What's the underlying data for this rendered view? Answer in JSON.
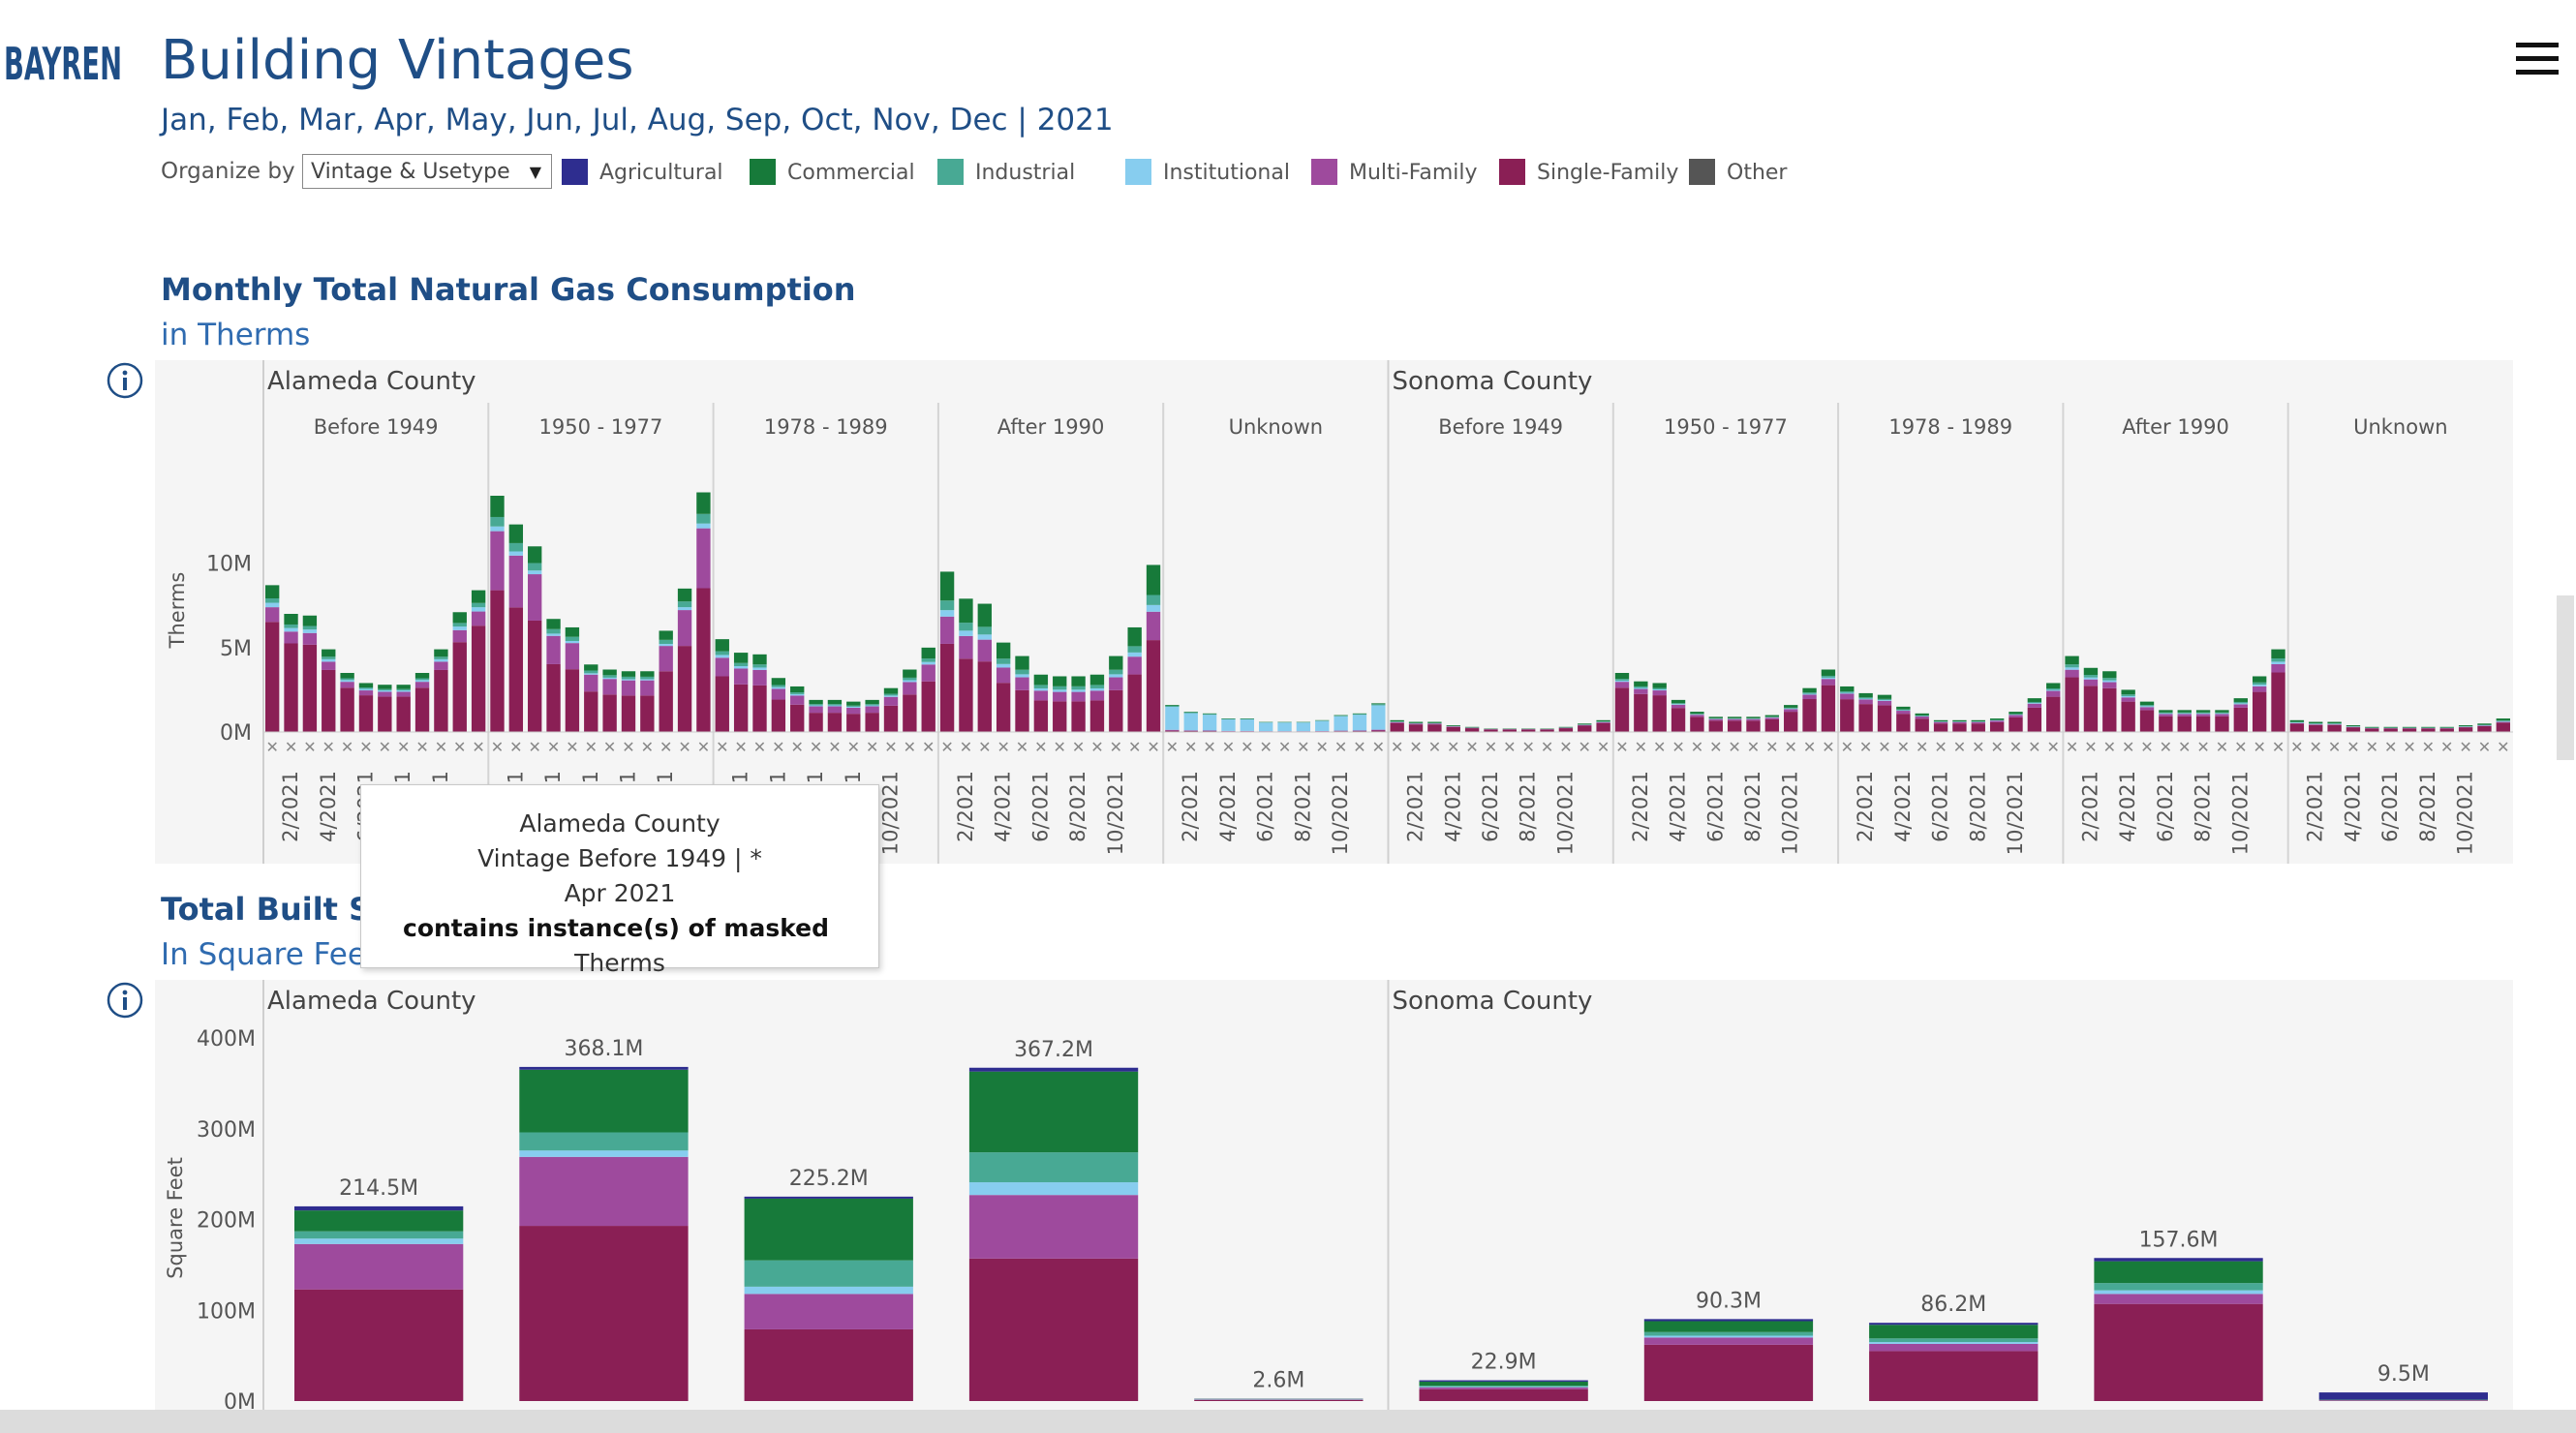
{
  "logo": {
    "text": "BAYREN"
  },
  "header": {
    "title": "Building Vintages",
    "subtitle": "Jan, Feb, Mar, Apr, May, Jun, Jul, Aug, Sep, Oct, Nov, Dec | 2021"
  },
  "controls": {
    "organize_label": "Organize by",
    "organize_value": "Vintage & Usetype"
  },
  "legend": [
    {
      "label": "Agricultural",
      "color": "#2e2d8f"
    },
    {
      "label": "Commercial",
      "color": "#177a3a"
    },
    {
      "label": "Industrial",
      "color": "#48a994"
    },
    {
      "label": "Institutional",
      "color": "#87cdef"
    },
    {
      "label": "Multi-Family",
      "color": "#9e4a9d"
    },
    {
      "label": "Single-Family",
      "color": "#8a1f55"
    },
    {
      "label": "Other",
      "color": "#555555"
    }
  ],
  "sections": {
    "gas": {
      "title": "Monthly Total Natural Gas Consumption",
      "subtitle": "in Therms"
    },
    "space": {
      "title": "Total Built Space",
      "subtitle": "In Square Feet"
    }
  },
  "tooltip": {
    "line1": "Alameda County",
    "line2": "Vintage Before 1949 | *",
    "line3": "Apr 2021",
    "line4_bold": "contains instance(s) of masked",
    "line4_rest": "Therms"
  },
  "chart_data": [
    {
      "type": "bar",
      "stacked": true,
      "title": "Monthly Total Natural Gas Consumption",
      "subtitle": "in Therms",
      "ylabel": "Therms",
      "ylim": [
        0,
        14000000
      ],
      "yticks": [
        {
          "v": 0,
          "label": "0M"
        },
        {
          "v": 5000000,
          "label": "5M"
        },
        {
          "v": 10000000,
          "label": "10M"
        }
      ],
      "xticks": [
        "2/2021",
        "4/2021",
        "6/2021",
        "8/2021",
        "10/2021"
      ],
      "masked_marker": "✕",
      "series_order": [
        "Single-Family",
        "Multi-Family",
        "Institutional",
        "Industrial",
        "Commercial"
      ],
      "series_colors": {
        "Single-Family": "#8a1f55",
        "Multi-Family": "#9e4a9d",
        "Institutional": "#87cdef",
        "Industrial": "#48a994",
        "Commercial": "#177a3a"
      },
      "panels": [
        {
          "county": "Alameda County",
          "vintages": [
            {
              "vintage": "Before 1949",
              "totals": [
                8.7,
                7.0,
                6.9,
                4.9,
                3.5,
                2.9,
                2.8,
                2.8,
                3.5,
                4.9,
                7.1,
                8.4
              ],
              "mix": {
                "Single-Family": 0.75,
                "Multi-Family": 0.1,
                "Institutional": 0.03,
                "Industrial": 0.03,
                "Commercial": 0.09
              }
            },
            {
              "vintage": "1950 - 1977",
              "totals": [
                14.0,
                12.3,
                11.0,
                6.7,
                6.2,
                4.0,
                3.7,
                3.6,
                3.6,
                6.0,
                8.5,
                14.2
              ],
              "mix": {
                "Single-Family": 0.6,
                "Multi-Family": 0.25,
                "Institutional": 0.02,
                "Industrial": 0.04,
                "Commercial": 0.09
              }
            },
            {
              "vintage": "1978 - 1989",
              "totals": [
                5.5,
                4.7,
                4.6,
                3.2,
                2.7,
                1.9,
                1.9,
                1.8,
                1.9,
                2.6,
                3.7,
                5.0
              ],
              "mix": {
                "Single-Family": 0.6,
                "Multi-Family": 0.2,
                "Institutional": 0.03,
                "Industrial": 0.04,
                "Commercial": 0.13
              }
            },
            {
              "vintage": "After 1990",
              "totals": [
                9.5,
                7.9,
                7.6,
                5.3,
                4.5,
                3.4,
                3.3,
                3.3,
                3.4,
                4.5,
                6.2,
                9.9
              ],
              "mix": {
                "Single-Family": 0.55,
                "Multi-Family": 0.17,
                "Institutional": 0.04,
                "Industrial": 0.06,
                "Commercial": 0.18
              }
            },
            {
              "vintage": "Unknown",
              "totals": [
                1.6,
                1.2,
                1.1,
                0.8,
                0.8,
                0.6,
                0.6,
                0.6,
                0.7,
                1.0,
                1.1,
                1.7
              ],
              "mix": {
                "Single-Family": 0.05,
                "Multi-Family": 0.03,
                "Institutional": 0.85,
                "Industrial": 0.04,
                "Commercial": 0.03
              }
            }
          ]
        },
        {
          "county": "Sonoma County",
          "vintages": [
            {
              "vintage": "Before 1949",
              "totals": [
                0.7,
                0.6,
                0.6,
                0.4,
                0.3,
                0.2,
                0.2,
                0.2,
                0.2,
                0.3,
                0.5,
                0.7
              ],
              "mix": {
                "Single-Family": 0.75,
                "Multi-Family": 0.08,
                "Institutional": 0.02,
                "Industrial": 0.03,
                "Commercial": 0.12
              }
            },
            {
              "vintage": "1950 - 1977",
              "totals": [
                3.5,
                3.0,
                2.9,
                1.9,
                1.2,
                0.9,
                0.9,
                0.9,
                1.0,
                1.6,
                2.6,
                3.7
              ],
              "mix": {
                "Single-Family": 0.75,
                "Multi-Family": 0.1,
                "Institutional": 0.02,
                "Industrial": 0.03,
                "Commercial": 0.1
              }
            },
            {
              "vintage": "1978 - 1989",
              "totals": [
                2.7,
                2.3,
                2.2,
                1.5,
                1.1,
                0.7,
                0.7,
                0.7,
                0.8,
                1.2,
                2.0,
                2.9
              ],
              "mix": {
                "Single-Family": 0.72,
                "Multi-Family": 0.12,
                "Institutional": 0.02,
                "Industrial": 0.03,
                "Commercial": 0.11
              }
            },
            {
              "vintage": "After 1990",
              "totals": [
                4.5,
                3.8,
                3.6,
                2.5,
                1.8,
                1.3,
                1.3,
                1.3,
                1.3,
                2.0,
                3.3,
                4.9
              ],
              "mix": {
                "Single-Family": 0.72,
                "Multi-Family": 0.1,
                "Institutional": 0.03,
                "Industrial": 0.04,
                "Commercial": 0.11
              }
            },
            {
              "vintage": "Unknown",
              "totals": [
                0.7,
                0.6,
                0.6,
                0.4,
                0.3,
                0.3,
                0.3,
                0.3,
                0.3,
                0.4,
                0.5,
                0.8
              ],
              "mix": {
                "Single-Family": 0.7,
                "Multi-Family": 0.05,
                "Institutional": 0.05,
                "Industrial": 0.05,
                "Commercial": 0.15
              }
            }
          ]
        }
      ]
    },
    {
      "type": "bar",
      "stacked": true,
      "title": "Total Built Space",
      "subtitle": "In Square Feet",
      "ylabel": "Square Feet",
      "ylim": [
        0,
        400000000
      ],
      "yticks": [
        {
          "v": 0,
          "label": "0M"
        },
        {
          "v": 100000000,
          "label": "100M"
        },
        {
          "v": 200000000,
          "label": "200M"
        },
        {
          "v": 300000000,
          "label": "300M"
        },
        {
          "v": 400000000,
          "label": "400M"
        }
      ],
      "series_order": [
        "Single-Family",
        "Multi-Family",
        "Institutional",
        "Industrial",
        "Commercial",
        "Agricultural"
      ],
      "series_colors": {
        "Single-Family": "#8a1f55",
        "Multi-Family": "#9e4a9d",
        "Institutional": "#87cdef",
        "Industrial": "#48a994",
        "Commercial": "#177a3a",
        "Agricultural": "#2e2d8f"
      },
      "panels": [
        {
          "county": "Alameda County",
          "bars": [
            {
              "label": "214.5M",
              "segments": {
                "Single-Family": 123,
                "Multi-Family": 50,
                "Institutional": 6,
                "Industrial": 8,
                "Commercial": 23,
                "Agricultural": 4.5
              }
            },
            {
              "label": "368.1M",
              "segments": {
                "Single-Family": 193,
                "Multi-Family": 76,
                "Institutional": 7,
                "Industrial": 20,
                "Commercial": 69,
                "Agricultural": 3.1
              }
            },
            {
              "label": "225.2M",
              "segments": {
                "Single-Family": 79,
                "Multi-Family": 39,
                "Institutional": 8,
                "Industrial": 29,
                "Commercial": 68,
                "Agricultural": 2.2
              }
            },
            {
              "label": "367.2M",
              "segments": {
                "Single-Family": 157,
                "Multi-Family": 70,
                "Institutional": 14,
                "Industrial": 33,
                "Commercial": 89,
                "Agricultural": 4.2
              }
            },
            {
              "label": "2.6M",
              "segments": {
                "Single-Family": 1.2,
                "Multi-Family": 0.4,
                "Institutional": 0.3,
                "Industrial": 0.2,
                "Commercial": 0.3,
                "Agricultural": 0.2
              }
            }
          ]
        },
        {
          "county": "Sonoma County",
          "bars": [
            {
              "label": "22.9M",
              "segments": {
                "Single-Family": 13,
                "Multi-Family": 2,
                "Institutional": 0.6,
                "Industrial": 1.3,
                "Commercial": 4.5,
                "Agricultural": 1.5
              }
            },
            {
              "label": "90.3M",
              "segments": {
                "Single-Family": 62,
                "Multi-Family": 8,
                "Institutional": 2,
                "Industrial": 4,
                "Commercial": 12,
                "Agricultural": 2.3
              }
            },
            {
              "label": "86.2M",
              "segments": {
                "Single-Family": 55,
                "Multi-Family": 8,
                "Institutional": 2,
                "Industrial": 4,
                "Commercial": 15,
                "Agricultural": 2.2
              }
            },
            {
              "label": "157.6M",
              "segments": {
                "Single-Family": 107,
                "Multi-Family": 11,
                "Institutional": 4,
                "Industrial": 8,
                "Commercial": 24,
                "Agricultural": 3.6
              }
            },
            {
              "label": "9.5M",
              "segments": {
                "Single-Family": 0.5,
                "Multi-Family": 0.3,
                "Institutional": 0.2,
                "Industrial": 0.2,
                "Commercial": 0.3,
                "Agricultural": 8.0
              }
            }
          ]
        }
      ]
    }
  ]
}
